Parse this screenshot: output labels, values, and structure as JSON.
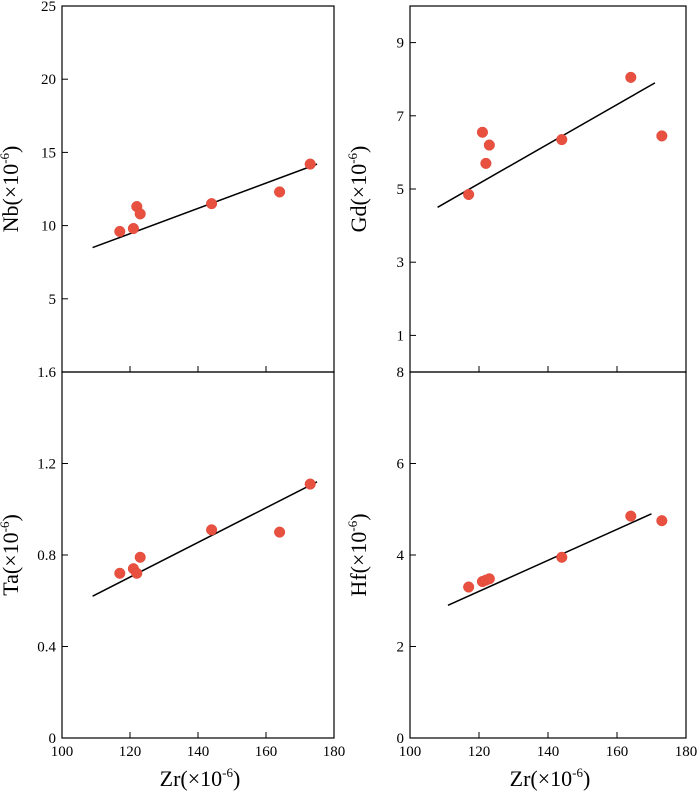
{
  "chart_data": [
    {
      "type": "scatter",
      "panel": "top-left",
      "ylabel": "Nb(×10",
      "ylabel_sup": "-6",
      "ylabel_suffix": ")",
      "xlim": [
        100,
        180
      ],
      "ylim": [
        0,
        25
      ],
      "yticks": [
        5,
        10,
        15,
        20,
        25
      ],
      "xticks": [
        100,
        120,
        140,
        160,
        180
      ],
      "show_x_tick_labels": false,
      "points": [
        [
          117,
          9.6
        ],
        [
          121,
          9.8
        ],
        [
          122,
          11.3
        ],
        [
          123,
          10.8
        ],
        [
          144,
          11.5
        ],
        [
          164,
          12.3
        ],
        [
          173,
          14.2
        ]
      ],
      "trendline": [
        [
          109,
          8.5
        ],
        [
          175,
          14.2
        ]
      ]
    },
    {
      "type": "scatter",
      "panel": "top-right",
      "ylabel": "Gd(×10",
      "ylabel_sup": "-6",
      "ylabel_suffix": ")",
      "xlim": [
        100,
        180
      ],
      "ylim": [
        0,
        10
      ],
      "yticks": [
        1,
        3,
        5,
        7,
        9
      ],
      "xticks": [
        100,
        120,
        140,
        160,
        180
      ],
      "show_x_tick_labels": false,
      "points": [
        [
          117,
          4.85
        ],
        [
          121,
          6.55
        ],
        [
          122,
          5.7
        ],
        [
          123,
          6.2
        ],
        [
          144,
          6.35
        ],
        [
          164,
          8.05
        ],
        [
          173,
          6.45
        ]
      ],
      "trendline": [
        [
          108,
          4.5
        ],
        [
          171,
          7.9
        ]
      ]
    },
    {
      "type": "scatter",
      "panel": "bottom-left",
      "ylabel": "Ta(×10",
      "ylabel_sup": "-6",
      "ylabel_suffix": ")",
      "xlabel": "Zr(×10",
      "xlabel_sup": "-6",
      "xlabel_suffix": ")",
      "xlim": [
        100,
        180
      ],
      "ylim": [
        0,
        1.6
      ],
      "yticks": [
        0,
        0.4,
        0.8,
        1.2,
        1.6
      ],
      "ytick_labels": [
        "0",
        "0.4",
        "0.8",
        "1.2",
        "1.6"
      ],
      "xticks": [
        100,
        120,
        140,
        160,
        180
      ],
      "show_x_tick_labels": true,
      "points": [
        [
          117,
          0.72
        ],
        [
          121,
          0.74
        ],
        [
          122,
          0.72
        ],
        [
          123,
          0.79
        ],
        [
          144,
          0.91
        ],
        [
          164,
          0.9
        ],
        [
          173,
          1.11
        ]
      ],
      "trendline": [
        [
          109,
          0.62
        ],
        [
          175,
          1.12
        ]
      ]
    },
    {
      "type": "scatter",
      "panel": "bottom-right",
      "ylabel": "Hf(×10",
      "ylabel_sup": "-6",
      "ylabel_suffix": ")",
      "xlabel": "Zr(×10",
      "xlabel_sup": "-6",
      "xlabel_suffix": ")",
      "xlim": [
        100,
        180
      ],
      "ylim": [
        0,
        8
      ],
      "yticks": [
        0,
        2,
        4,
        6,
        8
      ],
      "xticks": [
        100,
        120,
        140,
        160,
        180
      ],
      "show_x_tick_labels": true,
      "points": [
        [
          117,
          3.3
        ],
        [
          121,
          3.42
        ],
        [
          122,
          3.45
        ],
        [
          123,
          3.48
        ],
        [
          144,
          3.95
        ],
        [
          164,
          4.85
        ],
        [
          173,
          4.75
        ]
      ],
      "trendline": [
        [
          111,
          2.9
        ],
        [
          170,
          4.9
        ]
      ]
    }
  ],
  "colors": {
    "points": "#e8503f",
    "axes": "#000000",
    "background": "#ffffff"
  },
  "marker": "filled-circle"
}
